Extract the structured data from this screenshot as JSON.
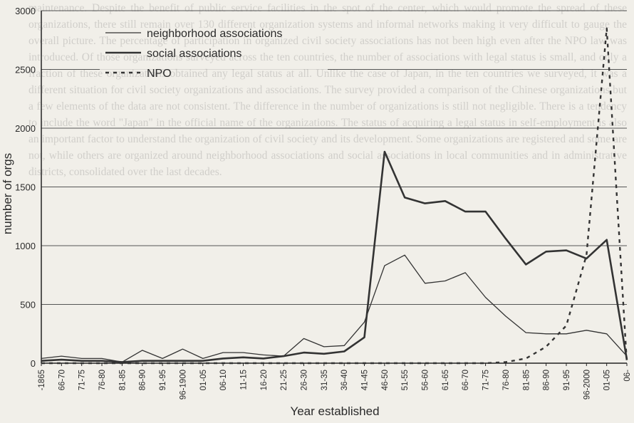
{
  "chart_data": {
    "type": "line",
    "xlabel": "Year established",
    "ylabel": "number of orgs",
    "ylim": [
      0,
      3000
    ],
    "yticks": [
      0,
      500,
      1000,
      1500,
      2000,
      2500,
      3000
    ],
    "grid": "horizontal",
    "legend_position": "top-left",
    "categories": [
      "-1865",
      "66-70",
      "71-75",
      "76-80",
      "81-85",
      "86-90",
      "91-95",
      "96-1900",
      "01-05",
      "06-10",
      "11-15",
      "16-20",
      "21-25",
      "26-30",
      "31-35",
      "36-40",
      "41-45",
      "46-50",
      "51-55",
      "56-60",
      "61-65",
      "66-70",
      "71-75",
      "76-80",
      "81-85",
      "86-90",
      "91-95",
      "96-2000",
      "01-05",
      "06-"
    ],
    "series": [
      {
        "name": "neighborhood associations",
        "style": "thin-solid",
        "color": "#333333",
        "values": [
          40,
          60,
          40,
          40,
          10,
          110,
          40,
          120,
          40,
          90,
          90,
          70,
          60,
          210,
          140,
          150,
          350,
          830,
          920,
          680,
          700,
          770,
          560,
          400,
          260,
          250,
          250,
          280,
          250,
          60
        ]
      },
      {
        "name": "social associations",
        "style": "thick-solid",
        "color": "#333333",
        "values": [
          20,
          30,
          20,
          20,
          10,
          20,
          20,
          20,
          20,
          40,
          50,
          40,
          60,
          90,
          80,
          100,
          220,
          1800,
          1410,
          1360,
          1380,
          1290,
          1290,
          1060,
          840,
          950,
          960,
          890,
          1050,
          30
        ]
      },
      {
        "name": "NPO",
        "style": "dashed",
        "color": "#333333",
        "values": [
          0,
          0,
          0,
          0,
          0,
          0,
          0,
          0,
          0,
          0,
          0,
          0,
          0,
          0,
          0,
          0,
          0,
          0,
          0,
          0,
          0,
          0,
          0,
          10,
          40,
          140,
          320,
          920,
          2850,
          0
        ]
      }
    ]
  }
}
